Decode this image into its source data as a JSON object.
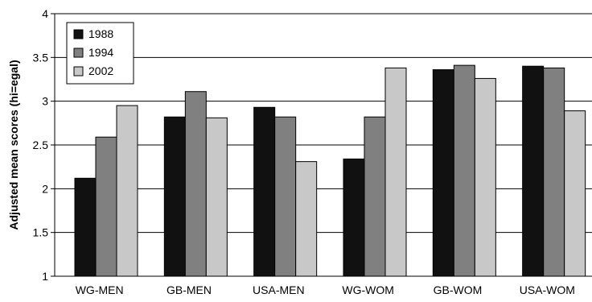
{
  "chart_data": {
    "type": "bar",
    "title": "",
    "xlabel": "",
    "ylabel": "Adjusted mean scores (hi=egal)",
    "ylim": [
      1,
      4
    ],
    "yticks": [
      "1",
      "1.5",
      "2",
      "2.5",
      "3",
      "3.5",
      "4"
    ],
    "grid": true,
    "legend_position": "top-left",
    "categories": [
      "WG-MEN",
      "GB-MEN",
      "USA-MEN",
      "WG-WOM",
      "GB-WOM",
      "USA-WOM"
    ],
    "series": [
      {
        "name": "1988",
        "color": "#111111",
        "values": [
          2.12,
          2.82,
          2.93,
          2.34,
          3.36,
          3.4
        ]
      },
      {
        "name": "1994",
        "color": "#808080",
        "values": [
          2.59,
          3.11,
          2.82,
          2.82,
          3.41,
          3.38
        ]
      },
      {
        "name": "2002",
        "color": "#c8c8c8",
        "values": [
          2.95,
          2.81,
          2.31,
          3.38,
          3.26,
          2.89
        ]
      }
    ]
  }
}
